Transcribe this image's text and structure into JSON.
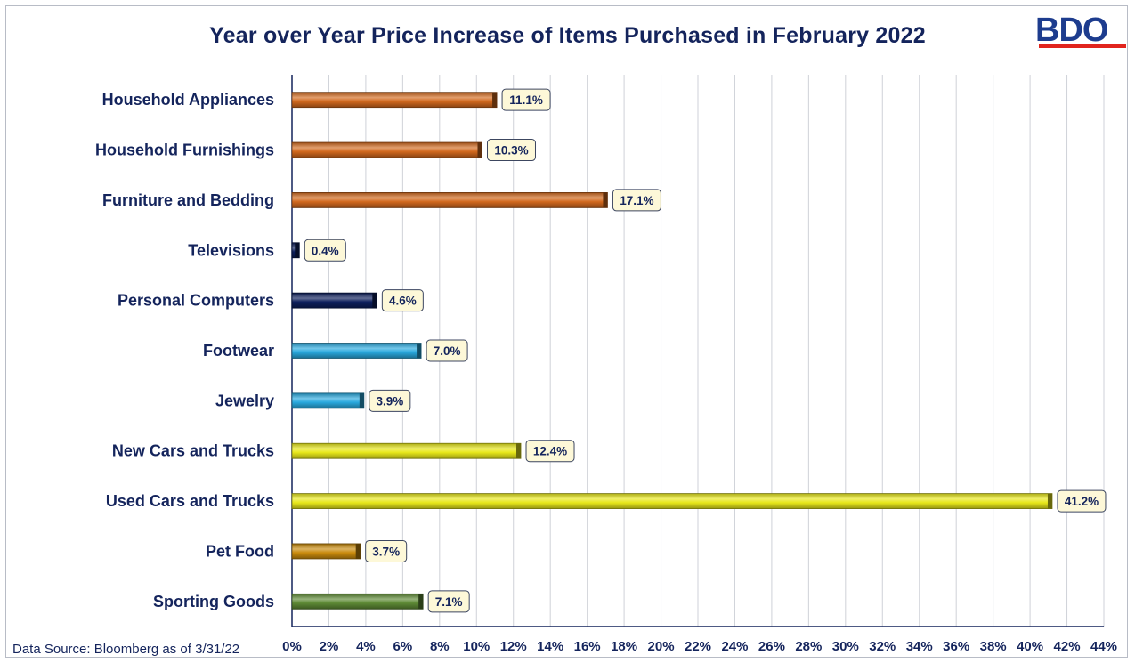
{
  "logo": {
    "text": "BDO",
    "accent_color": "#e1241d",
    "text_color": "#1d3c8e"
  },
  "source_note": "Data Source: Bloomberg as of 3/31/22",
  "chart_data": {
    "type": "bar",
    "orientation": "horizontal",
    "title": "Year over Year Price Increase of Items Purchased in February 2022",
    "xlabel": "",
    "ylabel": "",
    "categories": [
      "Household Appliances",
      "Household Furnishings",
      "Furniture and Bedding",
      "Televisions",
      "Personal Computers",
      "Footwear",
      "Jewelry",
      "New Cars and Trucks",
      "Used Cars and Trucks",
      "Pet Food",
      "Sporting Goods"
    ],
    "values": [
      11.1,
      10.3,
      17.1,
      0.4,
      4.6,
      7.0,
      3.9,
      12.4,
      41.2,
      3.7,
      7.1
    ],
    "value_labels": [
      "11.1%",
      "10.3%",
      "17.1%",
      "0.4%",
      "4.6%",
      "7.0%",
      "3.9%",
      "12.4%",
      "41.2%",
      "3.7%",
      "7.1%"
    ],
    "colors": [
      "#d2691e",
      "#d2691e",
      "#d2691e",
      "#0d1f5c",
      "#0d1f5c",
      "#29a9de",
      "#29a9de",
      "#e8e81a",
      "#e8e81a",
      "#c98a0c",
      "#5e8a35"
    ],
    "xlim": [
      0,
      44
    ],
    "xticks": [
      0,
      2,
      4,
      6,
      8,
      10,
      12,
      14,
      16,
      18,
      20,
      22,
      24,
      26,
      28,
      30,
      32,
      34,
      36,
      38,
      40,
      42,
      44
    ],
    "xtick_labels": [
      "0%",
      "2%",
      "4%",
      "6%",
      "8%",
      "10%",
      "12%",
      "14%",
      "16%",
      "18%",
      "20%",
      "22%",
      "24%",
      "26%",
      "28%",
      "30%",
      "32%",
      "34%",
      "36%",
      "38%",
      "40%",
      "42%",
      "44%"
    ],
    "grid": true,
    "label_color": "#14245c",
    "data_label_fill": "#fdf8d8"
  }
}
